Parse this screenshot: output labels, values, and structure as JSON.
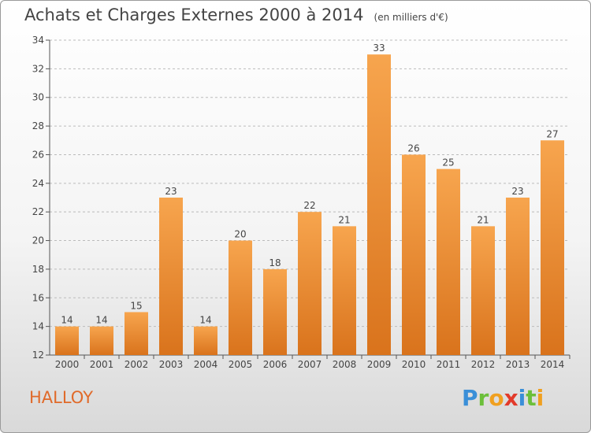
{
  "header": {
    "title": "Achats et Charges Externes 2000 à 2014",
    "unit": "(en milliers d'€)"
  },
  "commune": "HALLOY",
  "logo": {
    "letters": [
      {
        "ch": "P",
        "color": "#3a8fd8"
      },
      {
        "ch": "r",
        "color": "#6cbf3a"
      },
      {
        "ch": "o",
        "color": "#f0a020"
      },
      {
        "ch": "x",
        "color": "#e23a2a"
      },
      {
        "ch": "i",
        "color": "#3a8fd8"
      },
      {
        "ch": "t",
        "color": "#6cbf3a"
      },
      {
        "ch": "i",
        "color": "#f0a020"
      }
    ]
  },
  "colors": {
    "bar_light": "#f7a54e",
    "bar_dark": "#d9731c",
    "axis": "#555555",
    "grid": "#bbbbbb",
    "text": "#444444"
  },
  "chart_data": {
    "type": "bar",
    "title": "Achats et Charges Externes 2000 à 2014",
    "subtitle": "(en milliers d'€)",
    "categories": [
      "2000",
      "2001",
      "2002",
      "2003",
      "2004",
      "2005",
      "2006",
      "2007",
      "2008",
      "2009",
      "2010",
      "2011",
      "2012",
      "2013",
      "2014"
    ],
    "values": [
      14,
      14,
      15,
      23,
      14,
      20,
      18,
      22,
      21,
      33,
      26,
      25,
      21,
      23,
      27
    ],
    "ylim": [
      12,
      34
    ],
    "yticks": [
      12,
      14,
      16,
      18,
      20,
      22,
      24,
      26,
      28,
      30,
      32,
      34
    ],
    "grid": "horizontal dashed",
    "data_labels": true
  }
}
